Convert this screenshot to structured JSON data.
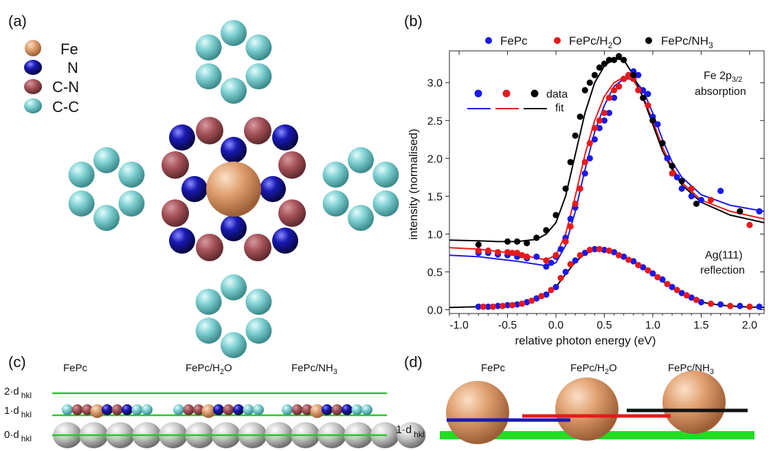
{
  "panel_labels": {
    "a": "(a)",
    "b": "(b)",
    "c": "(c)",
    "d": "(d)"
  },
  "panel_a": {
    "legend": [
      {
        "label": "Fe",
        "color": "#e0a070"
      },
      {
        "label": "N",
        "color": "#1a1ab4"
      },
      {
        "label": "C-N",
        "color": "#a8545a"
      },
      {
        "label": "C-C",
        "color": "#7fd0d2"
      }
    ]
  },
  "chart_data": {
    "type": "scatter",
    "title": "",
    "xlabel": "relative photon energy (eV)",
    "ylabel": "intensity (normalised)",
    "xlim": [
      -1.1,
      2.15
    ],
    "ylim": [
      -0.05,
      3.42
    ],
    "xticks": [
      -1.0,
      -0.5,
      0.0,
      0.5,
      1.0,
      1.5,
      2.0
    ],
    "xtick_labels": [
      "-1.0",
      "-0.5",
      "0.0",
      "0.5",
      "1.0",
      "1.5",
      "2.0"
    ],
    "yticks": [
      0.0,
      0.5,
      1.0,
      1.5,
      2.0,
      2.5,
      3.0
    ],
    "ytick_labels": [
      "0.0",
      "0.5",
      "1.0",
      "1.5",
      "2.0",
      "2.5",
      "3.0"
    ],
    "legend_top": [
      {
        "label": "FePc",
        "color": "#1a1ae6"
      },
      {
        "label": "FePc/H",
        "sub": "2",
        "tail": "O",
        "color": "#e61a1a"
      },
      {
        "label": "FePc/NH",
        "sub": "3",
        "tail": "",
        "color": "#000000"
      }
    ],
    "legend_inner": {
      "data": "data",
      "fit": "fit"
    },
    "annotations": {
      "fe_line1": "Fe 2p",
      "fe_sub": "3/2",
      "fe_line2": "absorption",
      "ag_line1": "Ag(111)",
      "ag_line2": "reflection"
    },
    "series": [
      {
        "name": "FePc",
        "group": "absorption",
        "color": "#1a1ae6",
        "x": [
          -0.8,
          -0.7,
          -0.6,
          -0.5,
          -0.4,
          -0.3,
          -0.2,
          -0.1,
          -0.05,
          0.0,
          0.05,
          0.1,
          0.15,
          0.2,
          0.25,
          0.3,
          0.35,
          0.4,
          0.45,
          0.5,
          0.55,
          0.6,
          0.65,
          0.7,
          0.75,
          0.8,
          0.85,
          0.9,
          0.95,
          1.0,
          1.05,
          1.1,
          1.15,
          1.2,
          1.25,
          1.3,
          1.4,
          1.5,
          1.7,
          2.1
        ],
        "y": [
          0.75,
          0.75,
          0.73,
          0.72,
          0.7,
          0.68,
          0.7,
          0.57,
          0.62,
          0.7,
          0.8,
          0.95,
          1.2,
          1.35,
          1.6,
          1.8,
          2.0,
          2.25,
          2.4,
          2.5,
          2.6,
          2.8,
          2.95,
          3.05,
          3.1,
          3.15,
          3.1,
          2.9,
          2.85,
          2.55,
          2.45,
          2.2,
          2.0,
          1.9,
          1.75,
          1.6,
          1.5,
          1.45,
          1.57,
          1.3
        ]
      },
      {
        "name": "FePc/H2O",
        "group": "absorption",
        "color": "#e61a1a",
        "x": [
          -0.8,
          -0.7,
          -0.6,
          -0.5,
          -0.45,
          -0.4,
          -0.35,
          -0.3,
          -0.1,
          0.0,
          0.1,
          0.15,
          0.2,
          0.25,
          0.3,
          0.35,
          0.4,
          0.45,
          0.5,
          0.55,
          0.6,
          0.65,
          0.7,
          0.75,
          0.8,
          0.85,
          0.9,
          0.95,
          1.0,
          1.1,
          1.2,
          1.4,
          1.6,
          2.0
        ],
        "y": [
          0.78,
          0.78,
          0.76,
          0.76,
          0.75,
          0.75,
          0.72,
          0.7,
          0.65,
          0.72,
          0.9,
          1.1,
          1.4,
          1.6,
          1.95,
          2.2,
          2.4,
          2.5,
          2.6,
          2.8,
          2.9,
          2.95,
          3.05,
          3.1,
          3.05,
          2.9,
          2.8,
          2.7,
          2.5,
          2.2,
          1.8,
          1.6,
          1.45,
          1.12
        ]
      },
      {
        "name": "FePc/NH3",
        "group": "absorption",
        "color": "#000000",
        "x": [
          -0.8,
          -0.5,
          -0.4,
          -0.3,
          -0.2,
          -0.1,
          0.0,
          0.1,
          0.15,
          0.2,
          0.25,
          0.3,
          0.35,
          0.4,
          0.45,
          0.5,
          0.55,
          0.6,
          0.65,
          0.7,
          0.8,
          0.9,
          1.0,
          1.1,
          1.2,
          1.3,
          1.45,
          1.9
        ],
        "y": [
          0.86,
          0.9,
          0.9,
          0.88,
          0.95,
          1.05,
          1.25,
          1.6,
          1.95,
          2.3,
          2.55,
          2.9,
          3.0,
          3.1,
          3.2,
          3.25,
          3.3,
          3.3,
          3.35,
          3.3,
          3.1,
          2.8,
          2.5,
          2.2,
          1.9,
          1.7,
          1.4,
          1.3
        ]
      },
      {
        "name": "FePc fit",
        "group": "fit",
        "color": "#1a1ae6",
        "x": [
          -1.1,
          -0.8,
          -0.6,
          -0.4,
          -0.2,
          -0.1,
          0.0,
          0.1,
          0.2,
          0.3,
          0.4,
          0.5,
          0.6,
          0.7,
          0.8,
          0.9,
          1.0,
          1.1,
          1.2,
          1.3,
          1.5,
          1.8,
          2.15
        ],
        "y": [
          0.72,
          0.7,
          0.67,
          0.64,
          0.6,
          0.58,
          0.62,
          0.85,
          1.3,
          1.85,
          2.35,
          2.7,
          2.95,
          3.05,
          3.05,
          2.9,
          2.6,
          2.25,
          1.95,
          1.75,
          1.52,
          1.38,
          1.3
        ]
      },
      {
        "name": "FePc/H2O fit",
        "group": "fit",
        "color": "#e61a1a",
        "x": [
          -1.1,
          -0.8,
          -0.6,
          -0.4,
          -0.2,
          -0.1,
          0.0,
          0.1,
          0.2,
          0.3,
          0.4,
          0.5,
          0.6,
          0.7,
          0.8,
          0.9,
          1.0,
          1.1,
          1.2,
          1.3,
          1.5,
          1.8,
          2.15
        ],
        "y": [
          0.82,
          0.8,
          0.77,
          0.74,
          0.68,
          0.66,
          0.72,
          1.0,
          1.5,
          2.05,
          2.5,
          2.82,
          3.0,
          3.07,
          3.03,
          2.82,
          2.5,
          2.15,
          1.88,
          1.68,
          1.45,
          1.3,
          1.2
        ]
      },
      {
        "name": "FePc/NH3 fit",
        "group": "fit",
        "color": "#000000",
        "x": [
          -1.1,
          -0.8,
          -0.6,
          -0.4,
          -0.2,
          -0.1,
          0.0,
          0.1,
          0.2,
          0.3,
          0.4,
          0.5,
          0.6,
          0.7,
          0.8,
          0.9,
          1.0,
          1.1,
          1.2,
          1.3,
          1.5,
          1.8,
          2.15
        ],
        "y": [
          0.92,
          0.91,
          0.9,
          0.9,
          0.93,
          1.0,
          1.15,
          1.5,
          2.05,
          2.6,
          3.0,
          3.22,
          3.32,
          3.3,
          3.1,
          2.8,
          2.45,
          2.1,
          1.85,
          1.65,
          1.42,
          1.25,
          1.15
        ]
      },
      {
        "name": "Ag reflection FePc",
        "group": "reflection",
        "color": "#1a1ae6",
        "x": [
          -0.8,
          -0.7,
          -0.6,
          -0.5,
          -0.4,
          -0.3,
          -0.2,
          -0.1,
          0.0,
          0.1,
          0.2,
          0.3,
          0.4,
          0.5,
          0.6,
          0.7,
          0.8,
          0.9,
          1.0,
          1.1,
          1.2,
          1.3,
          1.4,
          1.5,
          1.7,
          1.9,
          2.1
        ],
        "y": [
          0.04,
          0.04,
          0.05,
          0.06,
          0.07,
          0.1,
          0.15,
          0.2,
          0.3,
          0.5,
          0.65,
          0.75,
          0.8,
          0.79,
          0.76,
          0.7,
          0.64,
          0.56,
          0.48,
          0.4,
          0.3,
          0.22,
          0.16,
          0.1,
          0.07,
          0.05,
          0.04
        ]
      },
      {
        "name": "Ag reflection FePc/H2O",
        "group": "reflection",
        "color": "#e61a1a",
        "x": [
          -0.75,
          -0.65,
          -0.55,
          -0.45,
          -0.35,
          -0.25,
          -0.15,
          -0.05,
          0.05,
          0.15,
          0.25,
          0.35,
          0.45,
          0.55,
          0.65,
          0.75,
          0.85,
          0.95,
          1.05,
          1.15,
          1.25,
          1.35,
          1.45,
          1.6,
          1.8,
          2.0
        ],
        "y": [
          0.04,
          0.04,
          0.05,
          0.06,
          0.08,
          0.12,
          0.18,
          0.26,
          0.42,
          0.6,
          0.72,
          0.79,
          0.8,
          0.78,
          0.72,
          0.66,
          0.59,
          0.52,
          0.43,
          0.34,
          0.26,
          0.19,
          0.13,
          0.08,
          0.05,
          0.04
        ]
      },
      {
        "name": "Ag reflection fit",
        "group": "reflectionfit",
        "color": "#000000",
        "x": [
          -1.1,
          -0.8,
          -0.6,
          -0.4,
          -0.3,
          -0.2,
          -0.1,
          0.0,
          0.1,
          0.2,
          0.3,
          0.4,
          0.5,
          0.6,
          0.7,
          0.8,
          0.9,
          1.0,
          1.1,
          1.2,
          1.3,
          1.4,
          1.5,
          1.7,
          1.9,
          2.15
        ],
        "y": [
          0.03,
          0.04,
          0.05,
          0.07,
          0.1,
          0.14,
          0.2,
          0.3,
          0.47,
          0.63,
          0.74,
          0.79,
          0.79,
          0.76,
          0.7,
          0.63,
          0.55,
          0.47,
          0.38,
          0.29,
          0.21,
          0.15,
          0.1,
          0.06,
          0.04,
          0.03
        ]
      }
    ]
  },
  "panel_c": {
    "titles": [
      {
        "text": "FePc"
      },
      {
        "text": "FePc/H",
        "sub": "2",
        "tail": "O"
      },
      {
        "text": "FePc/NH",
        "sub": "3",
        "tail": ""
      }
    ],
    "levels": [
      {
        "prefix": "2·d",
        "sub": "hkl"
      },
      {
        "prefix": "1·d",
        "sub": "hkl"
      },
      {
        "prefix": "0·d",
        "sub": "hkl"
      }
    ]
  },
  "panel_d": {
    "titles": [
      {
        "text": "FePc"
      },
      {
        "text": "FePc/H",
        "sub": "2",
        "tail": "O"
      },
      {
        "text": "FePc/NH",
        "sub": "3",
        "tail": ""
      }
    ],
    "level": {
      "prefix": "1·d",
      "sub": "hkl"
    },
    "colors": {
      "sphere": "#e0a070",
      "surface": "#22dd22"
    }
  }
}
